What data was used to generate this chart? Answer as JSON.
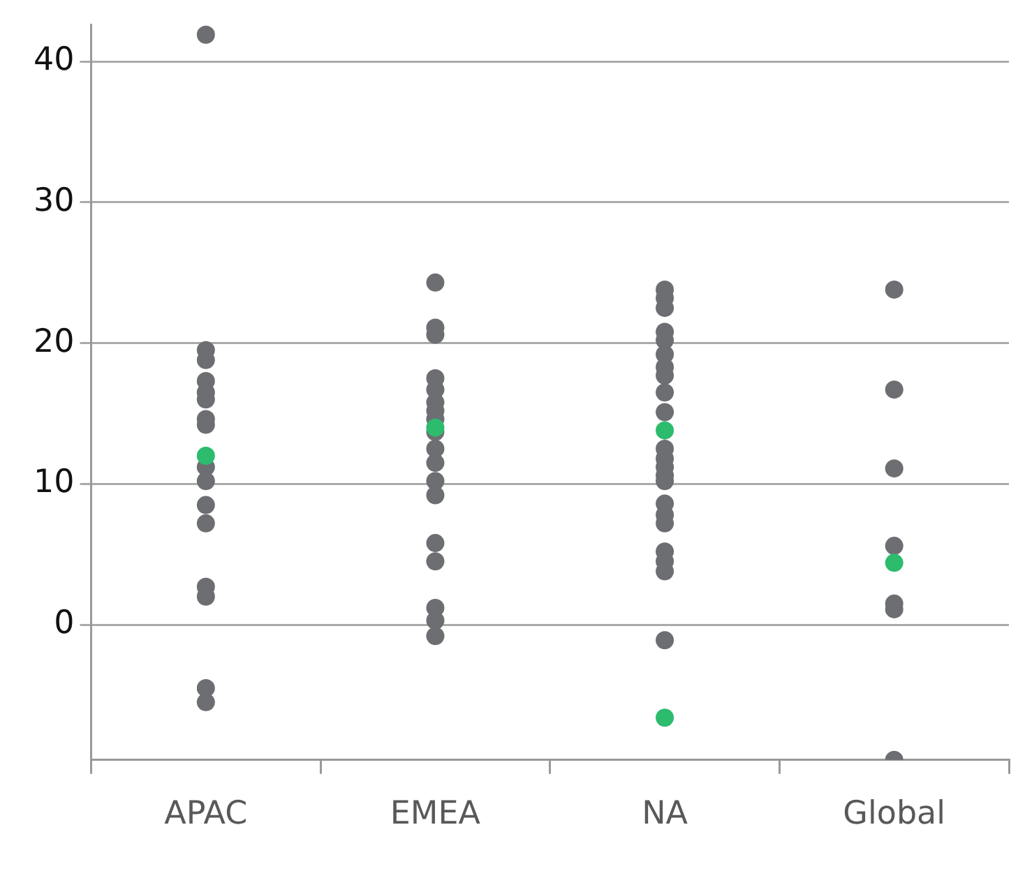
{
  "chart_data": {
    "type": "scatter",
    "categories": [
      "APAC",
      "EMEA",
      "NA",
      "Global"
    ],
    "series": [
      {
        "color": "#6d6e72",
        "x": [
          "APAC",
          "APAC",
          "APAC",
          "APAC",
          "APAC",
          "APAC",
          "APAC",
          "APAC",
          "APAC",
          "APAC",
          "APAC",
          "APAC",
          "APAC",
          "APAC",
          "APAC",
          "APAC",
          "EMEA",
          "EMEA",
          "EMEA",
          "EMEA",
          "EMEA",
          "EMEA",
          "EMEA",
          "EMEA",
          "EMEA",
          "EMEA",
          "EMEA",
          "EMEA",
          "EMEA",
          "EMEA",
          "EMEA",
          "EMEA",
          "EMEA",
          "EMEA",
          "NA",
          "NA",
          "NA",
          "NA",
          "NA",
          "NA",
          "NA",
          "NA",
          "NA",
          "NA",
          "NA",
          "NA",
          "NA",
          "NA",
          "NA",
          "NA",
          "NA",
          "NA",
          "NA",
          "NA",
          "NA",
          "NA",
          "Global",
          "Global",
          "Global",
          "Global",
          "Global",
          "Global",
          "Global"
        ],
        "values": [
          41.9,
          19.5,
          18.8,
          17.3,
          16.5,
          16.0,
          14.6,
          14.2,
          11.2,
          10.2,
          8.5,
          7.2,
          2.7,
          2.0,
          -4.5,
          -5.5,
          24.3,
          21.1,
          20.6,
          17.5,
          16.7,
          15.8,
          15.2,
          14.6,
          13.7,
          12.5,
          11.5,
          10.2,
          9.2,
          5.8,
          4.5,
          1.2,
          0.3,
          -0.8,
          23.8,
          23.2,
          22.5,
          20.8,
          20.2,
          19.2,
          18.3,
          17.7,
          16.5,
          15.1,
          12.5,
          11.8,
          11.2,
          10.6,
          10.2,
          8.6,
          7.8,
          7.2,
          5.2,
          4.5,
          3.8,
          -1.1,
          23.8,
          16.7,
          11.1,
          5.6,
          1.5,
          1.1,
          -9.6
        ]
      },
      {
        "color": "#2dbb6e",
        "x": [
          "APAC",
          "EMEA",
          "NA",
          "NA",
          "Global"
        ],
        "values": [
          12.0,
          14.0,
          13.8,
          -6.6,
          4.4
        ]
      }
    ],
    "ylim": [
      -9.6,
      42.6
    ],
    "yticks": [
      0,
      10,
      20,
      30,
      40
    ],
    "grid": "y",
    "marker": "circle"
  }
}
